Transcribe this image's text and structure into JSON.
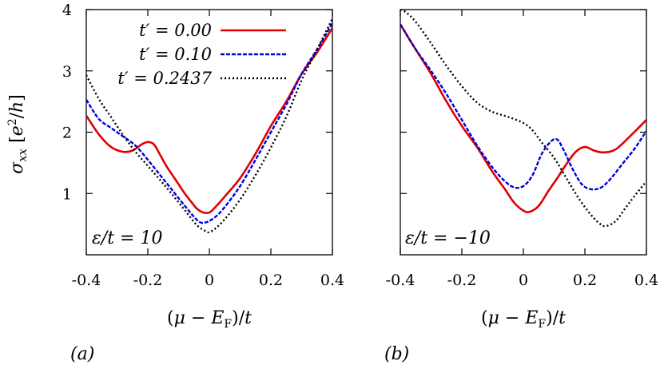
{
  "chart_data": [
    {
      "type": "line",
      "panel_label": "(a)",
      "annotation": "ε/t = 10",
      "xlabel": "(μ − E_F)/t",
      "ylabel": "σ_xx [e²/h]",
      "xlim": [
        -0.4,
        0.4
      ],
      "ylim": [
        0,
        4
      ],
      "xticks": [
        -0.4,
        -0.2,
        0,
        0.2,
        0.4
      ],
      "xtick_labels": [
        "-0.4",
        "-0.2",
        "0",
        "0.2",
        "0.4"
      ],
      "yticks": [
        1,
        2,
        3,
        4
      ],
      "ytick_labels": [
        "1",
        "2",
        "3",
        "4"
      ],
      "grid": false,
      "legend_position": "top-right",
      "series": [
        {
          "name": "t′ = 0.00",
          "color": "#e00000",
          "style": "solid",
          "x": [
            -0.4,
            -0.36,
            -0.32,
            -0.28,
            -0.25,
            -0.22,
            -0.2,
            -0.18,
            -0.16,
            -0.14,
            -0.12,
            -0.1,
            -0.08,
            -0.06,
            -0.04,
            -0.02,
            0.0,
            0.02,
            0.05,
            0.1,
            0.15,
            0.2,
            0.25,
            0.3,
            0.35,
            0.4
          ],
          "y": [
            2.27,
            1.97,
            1.76,
            1.68,
            1.7,
            1.8,
            1.84,
            1.8,
            1.63,
            1.45,
            1.3,
            1.15,
            1.0,
            0.87,
            0.75,
            0.69,
            0.69,
            0.78,
            0.95,
            1.25,
            1.65,
            2.1,
            2.5,
            2.95,
            3.3,
            3.7
          ]
        },
        {
          "name": "t′ = 0.10",
          "color": "#0000dd",
          "style": "dashed",
          "x": [
            -0.4,
            -0.36,
            -0.32,
            -0.28,
            -0.24,
            -0.2,
            -0.16,
            -0.12,
            -0.08,
            -0.05,
            -0.03,
            -0.01,
            0.02,
            0.05,
            0.1,
            0.15,
            0.2,
            0.25,
            0.3,
            0.35,
            0.4
          ],
          "y": [
            2.53,
            2.22,
            2.07,
            1.93,
            1.78,
            1.55,
            1.3,
            1.05,
            0.8,
            0.62,
            0.53,
            0.53,
            0.62,
            0.78,
            1.12,
            1.55,
            2.0,
            2.45,
            2.95,
            3.35,
            3.78
          ]
        },
        {
          "name": "t′ = 0.2437",
          "color": "#000000",
          "style": "dotted",
          "x": [
            -0.4,
            -0.36,
            -0.32,
            -0.28,
            -0.24,
            -0.2,
            -0.16,
            -0.12,
            -0.08,
            -0.04,
            -0.01,
            0.0,
            0.02,
            0.05,
            0.1,
            0.15,
            0.2,
            0.25,
            0.3,
            0.35,
            0.4
          ],
          "y": [
            2.93,
            2.55,
            2.25,
            1.95,
            1.68,
            1.45,
            1.22,
            0.98,
            0.73,
            0.48,
            0.38,
            0.37,
            0.43,
            0.58,
            0.9,
            1.3,
            1.75,
            2.25,
            2.85,
            3.35,
            3.85
          ]
        }
      ]
    },
    {
      "type": "line",
      "panel_label": "(b)",
      "annotation": "ε/t = −10",
      "xlabel": "(μ − E_F)/t",
      "xlim": [
        -0.4,
        0.4
      ],
      "ylim": [
        0,
        4
      ],
      "xticks": [
        -0.4,
        -0.2,
        0,
        0.2,
        0.4
      ],
      "xtick_labels": [
        "-0.4",
        "-0.2",
        "0",
        "0.2",
        "0.4"
      ],
      "grid": false,
      "series": [
        {
          "name": "t′ = 0.00",
          "color": "#e00000",
          "style": "solid",
          "x": [
            -0.4,
            -0.35,
            -0.3,
            -0.25,
            -0.2,
            -0.15,
            -0.1,
            -0.06,
            -0.03,
            0.0,
            0.02,
            0.05,
            0.08,
            0.11,
            0.14,
            0.17,
            0.2,
            0.23,
            0.26,
            0.3,
            0.35,
            0.4
          ],
          "y": [
            3.76,
            3.35,
            2.95,
            2.5,
            2.1,
            1.75,
            1.35,
            1.07,
            0.85,
            0.72,
            0.7,
            0.8,
            1.03,
            1.25,
            1.48,
            1.68,
            1.76,
            1.7,
            1.67,
            1.72,
            1.95,
            2.2
          ]
        },
        {
          "name": "t′ = 0.10",
          "color": "#0000dd",
          "style": "dashed",
          "x": [
            -0.4,
            -0.35,
            -0.3,
            -0.25,
            -0.2,
            -0.15,
            -0.1,
            -0.06,
            -0.03,
            0.0,
            0.03,
            0.06,
            0.09,
            0.11,
            0.13,
            0.16,
            0.19,
            0.22,
            0.25,
            0.28,
            0.32,
            0.36,
            0.4
          ],
          "y": [
            3.76,
            3.35,
            3.0,
            2.62,
            2.2,
            1.78,
            1.42,
            1.2,
            1.1,
            1.12,
            1.3,
            1.65,
            1.85,
            1.88,
            1.72,
            1.4,
            1.15,
            1.07,
            1.09,
            1.22,
            1.47,
            1.72,
            2.02
          ]
        },
        {
          "name": "t′ = 0.2437",
          "color": "#000000",
          "style": "dotted",
          "x": [
            -0.4,
            -0.38,
            -0.35,
            -0.3,
            -0.25,
            -0.2,
            -0.15,
            -0.1,
            -0.05,
            0.0,
            0.03,
            0.06,
            0.1,
            0.14,
            0.18,
            0.22,
            0.25,
            0.27,
            0.3,
            0.33,
            0.36,
            0.4
          ],
          "y": [
            4.0,
            3.95,
            3.8,
            3.45,
            3.08,
            2.75,
            2.48,
            2.33,
            2.25,
            2.15,
            2.03,
            1.83,
            1.58,
            1.25,
            0.92,
            0.65,
            0.5,
            0.47,
            0.55,
            0.75,
            0.95,
            1.2
          ]
        }
      ]
    }
  ]
}
